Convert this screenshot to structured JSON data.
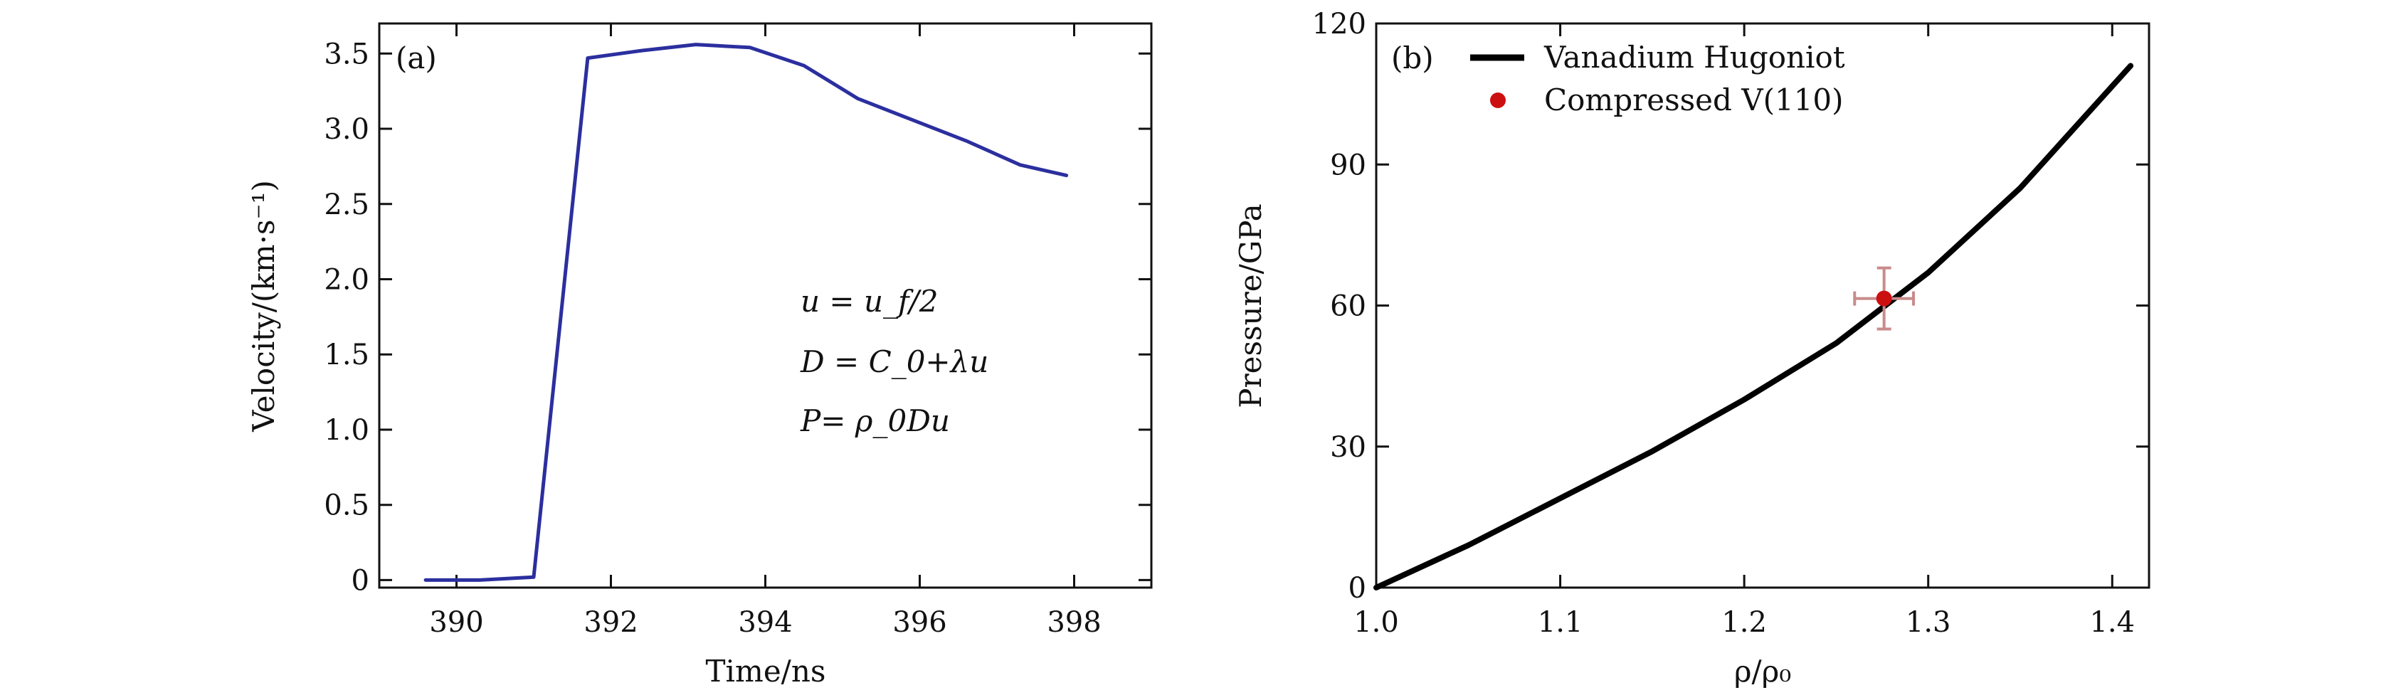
{
  "chart_data": [
    {
      "type": "line",
      "panel_label": "(a)",
      "xlabel": "Time/ns",
      "ylabel": "Velocity/(km·s⁻¹)",
      "xlim": [
        389,
        399
      ],
      "ylim": [
        -0.05,
        3.7
      ],
      "x_ticks": [
        390,
        392,
        394,
        396,
        398
      ],
      "y_ticks": [
        0,
        0.5,
        1.0,
        1.5,
        2.0,
        2.5,
        3.0,
        3.5
      ],
      "y_tick_labels": [
        "0",
        "0.5",
        "1.0",
        "1.5",
        "2.0",
        "2.5",
        "3.0",
        "3.5"
      ],
      "series": [
        {
          "color": "#2b2f9e",
          "x": [
            389.6,
            390.3,
            391.0,
            391.7,
            392.4,
            393.1,
            393.8,
            394.5,
            395.2,
            395.9,
            396.6,
            397.3,
            397.9
          ],
          "y": [
            0.0,
            0.0,
            0.02,
            3.47,
            3.52,
            3.56,
            3.54,
            3.42,
            3.2,
            3.06,
            2.92,
            2.76,
            2.69
          ]
        }
      ],
      "annotations": [
        {
          "id": "eq1",
          "text": "u = u_f/2"
        },
        {
          "id": "eq2",
          "text": "D = C_0+λu"
        },
        {
          "id": "eq3",
          "text": "P= ρ_0Du"
        }
      ]
    },
    {
      "type": "line",
      "panel_label": "(b)",
      "xlabel": "ρ/ρ₀",
      "ylabel": "Pressure/GPa",
      "xlim": [
        1.0,
        1.42
      ],
      "ylim": [
        0,
        120
      ],
      "x_ticks": [
        1.0,
        1.1,
        1.2,
        1.3,
        1.4
      ],
      "x_tick_labels": [
        "1.0",
        "1.1",
        "1.2",
        "1.3",
        "1.4"
      ],
      "y_ticks": [
        0,
        30,
        60,
        90,
        120
      ],
      "y_tick_labels": [
        "0",
        "30",
        "60",
        "90",
        "120"
      ],
      "legend_position": "top-left",
      "series": [
        {
          "name": "Vanadium Hugoniot",
          "color": "#000000",
          "x": [
            1.0,
            1.05,
            1.1,
            1.15,
            1.2,
            1.25,
            1.3,
            1.35,
            1.41
          ],
          "y": [
            0,
            9,
            19,
            29,
            40,
            52,
            67,
            85,
            111
          ]
        },
        {
          "name": "Compressed V(110)",
          "type": "scatter",
          "color": "#cc1010",
          "x": [
            1.276
          ],
          "y": [
            61.5
          ],
          "x_err": 0.016,
          "y_err": 6.5
        }
      ]
    }
  ]
}
